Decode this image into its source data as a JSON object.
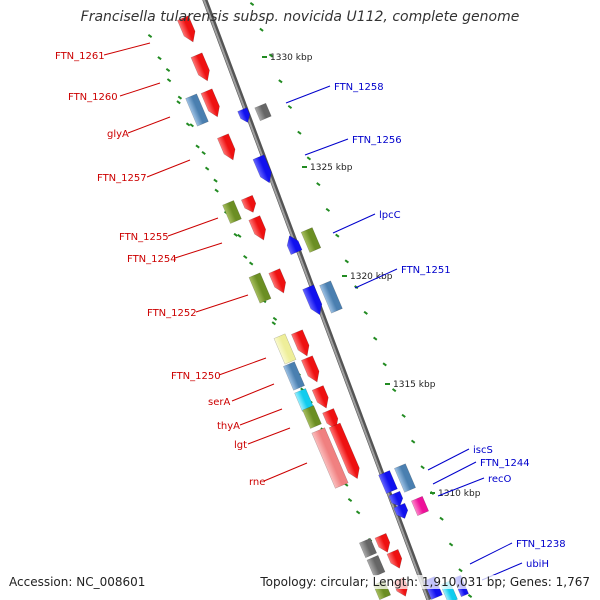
{
  "title": "Francisella tularensis subsp. novicida U112, complete genome",
  "footer": {
    "accession": "Accession: NC_008601",
    "summary": "Topology: circular; Length: 1,910,031 bp; Genes: 1,767"
  },
  "colors": {
    "red_gene": "#ee1111",
    "blue_gene": "#1111ee",
    "steel_gene": "#4a7fb0",
    "olive_gene": "#6b8e23",
    "pink_gene": "#f08080",
    "yellow_gene": "#eeee99",
    "cyan_gene": "#11ccee",
    "magenta_gene": "#ee1199",
    "gray_gene": "#666666",
    "backbone": "#888888",
    "ticks": "#228b22",
    "left_labels": "#cc0000",
    "right_labels": "#0000cc"
  },
  "scale_labels": [
    "1330 kbp",
    "1325 kbp",
    "1320 kbp",
    "1315 kbp",
    "1310 kbp"
  ],
  "left_labels": [
    "FTN_1261",
    "FTN_1260",
    "glyA",
    "FTN_1257",
    "FTN_1255",
    "FTN_1254",
    "FTN_1252",
    "FTN_1250",
    "serA",
    "thyA",
    "lgt",
    "rne"
  ],
  "right_labels": [
    "FTN_1258",
    "FTN_1256",
    "lpcC",
    "FTN_1251",
    "iscS",
    "FTN_1244",
    "recO",
    "FTN_1238",
    "ubiH"
  ]
}
